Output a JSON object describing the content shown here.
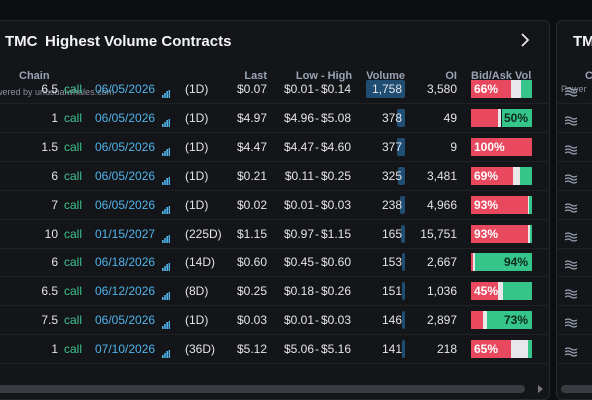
{
  "panel": {
    "ticker": "TMC",
    "title": "Highest Volume Contracts",
    "powered": "owered by unusualwhales.com"
  },
  "table": {
    "headers": [
      "Chain",
      "Last",
      "Low - High",
      "Volume",
      "OI",
      "Bid/Ask Vol"
    ],
    "range_separator": "-",
    "rows": [
      {
        "strike": "6.5",
        "type": "call",
        "expiry": "06/05/2026",
        "dte": "(1D)",
        "last": "$0.07",
        "low": "$0.01",
        "high": "$0.14",
        "volume": {
          "value": 1758,
          "label": "1,758"
        },
        "oi": "3,580",
        "bid_ask": {
          "ask": 66,
          "mid": 16,
          "bid": 18,
          "label": "66%",
          "label_side": "ask"
        }
      },
      {
        "strike": "1",
        "type": "call",
        "expiry": "06/05/2026",
        "dte": "(1D)",
        "last": "$4.97",
        "low": "$4.96",
        "high": "$5.08",
        "volume": {
          "value": 378,
          "label": "378"
        },
        "oi": "49",
        "bid_ask": {
          "ask": 45,
          "mid": 5,
          "bid": 50,
          "label": "50%",
          "label_side": "bid"
        }
      },
      {
        "strike": "1.5",
        "type": "call",
        "expiry": "06/05/2026",
        "dte": "(1D)",
        "last": "$4.47",
        "low": "$4.47",
        "high": "$4.60",
        "volume": {
          "value": 377,
          "label": "377"
        },
        "oi": "9",
        "bid_ask": {
          "ask": 100,
          "mid": 0,
          "bid": 0,
          "label": "100%",
          "label_side": "ask"
        }
      },
      {
        "strike": "6",
        "type": "call",
        "expiry": "06/05/2026",
        "dte": "(1D)",
        "last": "$0.21",
        "low": "$0.11",
        "high": "$0.25",
        "volume": {
          "value": 325,
          "label": "325"
        },
        "oi": "3,481",
        "bid_ask": {
          "ask": 69,
          "mid": 12,
          "bid": 19,
          "label": "69%",
          "label_side": "ask"
        }
      },
      {
        "strike": "7",
        "type": "call",
        "expiry": "06/05/2026",
        "dte": "(1D)",
        "last": "$0.02",
        "low": "$0.01",
        "high": "$0.03",
        "volume": {
          "value": 238,
          "label": "238"
        },
        "oi": "4,966",
        "bid_ask": {
          "ask": 93,
          "mid": 2,
          "bid": 5,
          "label": "93%",
          "label_side": "ask"
        }
      },
      {
        "strike": "10",
        "type": "call",
        "expiry": "01/15/2027",
        "dte": "(225D)",
        "last": "$1.15",
        "low": "$0.97",
        "high": "$1.15",
        "volume": {
          "value": 165,
          "label": "165"
        },
        "oi": "15,751",
        "bid_ask": {
          "ask": 93,
          "mid": 3,
          "bid": 4,
          "label": "93%",
          "label_side": "ask"
        }
      },
      {
        "strike": "6",
        "type": "call",
        "expiry": "06/18/2026",
        "dte": "(14D)",
        "last": "$0.60",
        "low": "$0.45",
        "high": "$0.60",
        "volume": {
          "value": 153,
          "label": "153"
        },
        "oi": "2,667",
        "bid_ask": {
          "ask": 4,
          "mid": 2,
          "bid": 94,
          "label": "94%",
          "label_side": "bid"
        }
      },
      {
        "strike": "6.5",
        "type": "call",
        "expiry": "06/12/2026",
        "dte": "(8D)",
        "last": "$0.25",
        "low": "$0.18",
        "high": "$0.26",
        "volume": {
          "value": 151,
          "label": "151"
        },
        "oi": "1,036",
        "bid_ask": {
          "ask": 45,
          "mid": 8,
          "bid": 47,
          "label": "45%",
          "label_side": "ask"
        }
      },
      {
        "strike": "7.5",
        "type": "call",
        "expiry": "06/05/2026",
        "dte": "(1D)",
        "last": "$0.03",
        "low": "$0.01",
        "high": "$0.03",
        "volume": {
          "value": 146,
          "label": "146"
        },
        "oi": "2,897",
        "bid_ask": {
          "ask": 20,
          "mid": 7,
          "bid": 73,
          "label": "73%",
          "label_side": "bid"
        }
      },
      {
        "strike": "1",
        "type": "call",
        "expiry": "07/10/2026",
        "dte": "(36D)",
        "last": "$5.12",
        "low": "$5.06",
        "high": "$5.16",
        "volume": {
          "value": 141,
          "label": "141"
        },
        "oi": "218",
        "bid_ask": {
          "ask": 65,
          "mid": 28,
          "bid": 7,
          "label": "65%",
          "label_side": "ask"
        }
      }
    ]
  },
  "side_panel": {
    "ticker": "TM",
    "column": "C",
    "powered": "Power"
  }
}
